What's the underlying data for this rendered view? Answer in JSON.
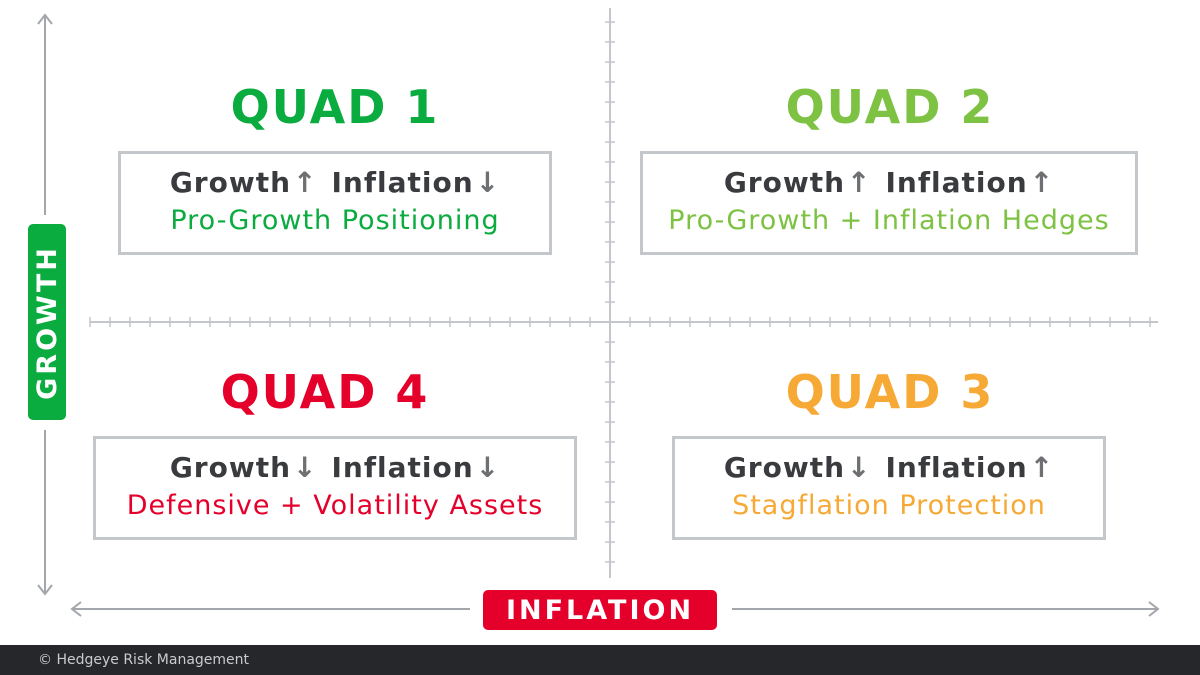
{
  "axes": {
    "y_label": "GROWTH",
    "x_label": "INFLATION",
    "y_color": "#0aab3f",
    "x_color": "#e4002b"
  },
  "quads": [
    {
      "title": "QUAD 1",
      "growth": "Growth",
      "growth_dir": "up",
      "growth_arrow": "↑",
      "inflation": "Inflation",
      "inflation_dir": "down",
      "inflation_arrow": "↓",
      "strategy": "Pro-Growth Positioning",
      "color": "#0aab3f"
    },
    {
      "title": "QUAD 2",
      "growth": "Growth",
      "growth_dir": "up",
      "growth_arrow": "↑",
      "inflation": "Inflation",
      "inflation_dir": "up",
      "inflation_arrow": "↑",
      "strategy": "Pro-Growth + Inflation Hedges",
      "color": "#7dc242"
    },
    {
      "title": "QUAD 3",
      "growth": "Growth",
      "growth_dir": "down",
      "growth_arrow": "↓",
      "inflation": "Inflation",
      "inflation_dir": "up",
      "inflation_arrow": "↑",
      "strategy": "Stagflation Protection",
      "color": "#f7a935"
    },
    {
      "title": "QUAD 4",
      "growth": "Growth",
      "growth_dir": "down",
      "growth_arrow": "↓",
      "inflation": "Inflation",
      "inflation_dir": "down",
      "inflation_arrow": "↓",
      "strategy": "Defensive + Volatility Assets",
      "color": "#e4002b"
    }
  ],
  "footer": {
    "copyright": "© Hedgeye Risk Management"
  }
}
